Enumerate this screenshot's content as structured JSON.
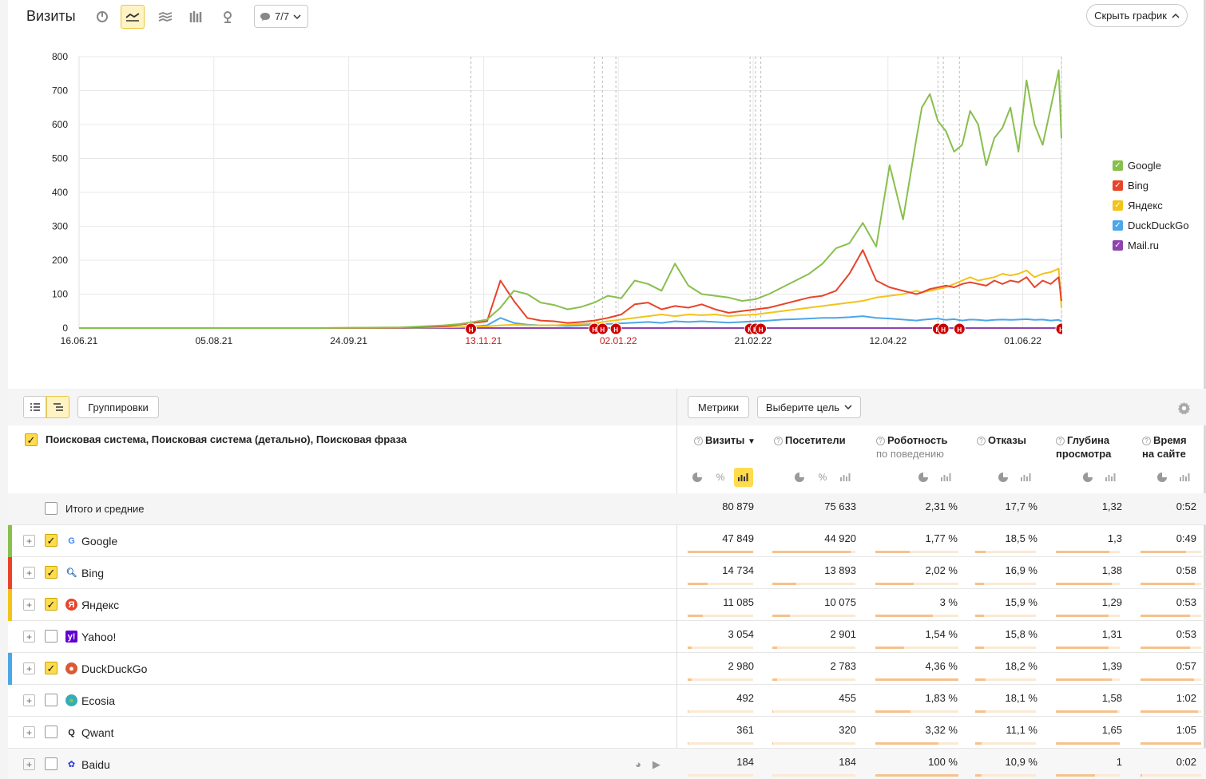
{
  "header": {
    "title": "Визиты",
    "notes_label": "7/7",
    "hide_chart_label": "Скрыть график"
  },
  "chart_data": {
    "type": "line",
    "x_ticks": [
      "16.06.21",
      "05.08.21",
      "24.09.21",
      "13.11.21",
      "02.01.22",
      "21.02.22",
      "12.04.22",
      "01.06.22"
    ],
    "x_ticks_highlighted": [
      "13.11.21",
      "02.01.22"
    ],
    "y_ticks": [
      "0",
      "100",
      "200",
      "300",
      "400",
      "500",
      "600",
      "700",
      "800"
    ],
    "ylim": [
      0,
      800
    ],
    "x": [
      "2021-06-16",
      "2021-07-16",
      "2021-08-15",
      "2021-09-14",
      "2021-10-14",
      "2021-10-30",
      "2021-11-05",
      "2021-11-10",
      "2021-11-15",
      "2021-11-20",
      "2021-11-25",
      "2021-11-30",
      "2021-12-05",
      "2021-12-10",
      "2021-12-15",
      "2021-12-20",
      "2021-12-25",
      "2021-12-30",
      "2022-01-04",
      "2022-01-09",
      "2022-01-14",
      "2022-01-19",
      "2022-01-24",
      "2022-01-29",
      "2022-02-03",
      "2022-02-08",
      "2022-02-13",
      "2022-02-18",
      "2022-02-23",
      "2022-02-28",
      "2022-03-05",
      "2022-03-10",
      "2022-03-15",
      "2022-03-20",
      "2022-03-25",
      "2022-03-30",
      "2022-04-04",
      "2022-04-09",
      "2022-04-14",
      "2022-04-19",
      "2022-04-24",
      "2022-04-26",
      "2022-04-29",
      "2022-05-02",
      "2022-05-05",
      "2022-05-08",
      "2022-05-11",
      "2022-05-14",
      "2022-05-17",
      "2022-05-20",
      "2022-05-23",
      "2022-05-26",
      "2022-05-29",
      "2022-06-01",
      "2022-06-04",
      "2022-06-07",
      "2022-06-10",
      "2022-06-13",
      "2022-06-16",
      "2022-06-17"
    ],
    "series": [
      {
        "name": "Google",
        "color": "#88bf4d",
        "values": [
          0,
          0,
          0,
          0,
          2,
          8,
          12,
          18,
          25,
          60,
          110,
          100,
          75,
          68,
          55,
          62,
          75,
          95,
          88,
          140,
          130,
          110,
          190,
          125,
          100,
          95,
          90,
          80,
          85,
          100,
          120,
          140,
          160,
          190,
          235,
          250,
          310,
          240,
          480,
          320,
          560,
          650,
          690,
          610,
          580,
          520,
          540,
          640,
          600,
          480,
          560,
          590,
          650,
          520,
          730,
          600,
          540,
          650,
          760,
          560
        ]
      },
      {
        "name": "Bing",
        "color": "#e8442a",
        "values": [
          0,
          0,
          0,
          0,
          1,
          5,
          10,
          15,
          20,
          140,
          80,
          30,
          22,
          20,
          15,
          18,
          22,
          30,
          40,
          70,
          75,
          55,
          65,
          60,
          70,
          55,
          45,
          50,
          55,
          60,
          70,
          80,
          90,
          95,
          110,
          160,
          230,
          140,
          120,
          110,
          100,
          105,
          115,
          120,
          125,
          120,
          130,
          135,
          130,
          125,
          140,
          130,
          140,
          135,
          150,
          120,
          140,
          130,
          150,
          80
        ]
      },
      {
        "name": "Яндекс",
        "color": "#f2c31a",
        "values": [
          0,
          0,
          0,
          0,
          1,
          2,
          3,
          4,
          5,
          8,
          10,
          8,
          8,
          8,
          10,
          12,
          14,
          20,
          25,
          30,
          35,
          40,
          35,
          40,
          38,
          40,
          35,
          38,
          40,
          45,
          50,
          55,
          60,
          65,
          70,
          75,
          80,
          90,
          95,
          100,
          110,
          105,
          110,
          115,
          120,
          130,
          140,
          150,
          140,
          145,
          150,
          160,
          155,
          160,
          170,
          150,
          160,
          165,
          175,
          60
        ]
      },
      {
        "name": "DuckDuckGo",
        "color": "#4da6e8",
        "values": [
          0,
          0,
          0,
          0,
          0,
          2,
          3,
          5,
          8,
          30,
          15,
          10,
          8,
          8,
          6,
          8,
          10,
          12,
          14,
          16,
          18,
          15,
          20,
          18,
          20,
          18,
          16,
          18,
          20,
          22,
          25,
          26,
          28,
          30,
          30,
          32,
          35,
          30,
          28,
          25,
          22,
          24,
          26,
          28,
          24,
          26,
          22,
          25,
          24,
          22,
          24,
          25,
          24,
          25,
          26,
          24,
          25,
          22,
          24,
          20
        ]
      },
      {
        "name": "Mail.ru",
        "color": "#8e44ad",
        "values": [
          0,
          0,
          0,
          0,
          0,
          0,
          0,
          0,
          0,
          0,
          0,
          0,
          0,
          0,
          0,
          0,
          0,
          0,
          0,
          0,
          0,
          0,
          0,
          0,
          0,
          0,
          0,
          0,
          0,
          0,
          0,
          0,
          0,
          0,
          0,
          0,
          0,
          0,
          0,
          0,
          0,
          0,
          0,
          0,
          0,
          0,
          0,
          0,
          0,
          0,
          0,
          0,
          0,
          0,
          0,
          0,
          0,
          0,
          0,
          0
        ]
      }
    ],
    "annotation_marker_label": "H",
    "annotation_dates": [
      "2021-11-09",
      "2021-12-25",
      "2021-12-28",
      "2022-01-02",
      "2022-02-21",
      "2022-02-23",
      "2022-02-25",
      "2022-05-02",
      "2022-05-04",
      "2022-05-10",
      "2022-06-17"
    ],
    "grid": true,
    "legend_position": "right"
  },
  "legend": {
    "items": [
      {
        "label": "Google",
        "color": "#88bf4d"
      },
      {
        "label": "Bing",
        "color": "#e8442a"
      },
      {
        "label": "Яндекс",
        "color": "#f2c31a"
      },
      {
        "label": "DuckDuckGo",
        "color": "#4da6e8"
      },
      {
        "label": "Mail.ru",
        "color": "#8e44ad"
      }
    ]
  },
  "toolbar": {
    "groupings_label": "Группировки",
    "metrics_label": "Метрики",
    "goal_label": "Выберите цель"
  },
  "table": {
    "dimension_header": "Поисковая система, Поисковая система (детально), Поисковая фраза",
    "columns": [
      {
        "label": "Визиты",
        "sort": "▼"
      },
      {
        "label": "Посетители"
      },
      {
        "label": "Роботность",
        "sub": "по поведению"
      },
      {
        "label": "Отказы"
      },
      {
        "label": "Глубина",
        "label2": "просмотра"
      },
      {
        "label": "Время",
        "label2": "на сайте"
      }
    ],
    "total": {
      "name": "Итого и средние",
      "values": [
        "80 879",
        "75 633",
        "2,31 %",
        "17,7 %",
        "1,32",
        "0:52"
      ]
    },
    "rows": [
      {
        "name": "Google",
        "values": [
          "47 849",
          "44 920",
          "1,77 %",
          "18,5 %",
          "1,3",
          "0:49"
        ],
        "checked": true,
        "stripe": "#88bf4d",
        "icon": "google-icon",
        "bars": [
          1.0,
          0.94,
          0.41,
          0.17,
          0.84,
          0.75
        ]
      },
      {
        "name": "Bing",
        "values": [
          "14 734",
          "13 893",
          "2,02 %",
          "16,9 %",
          "1,38",
          "0:58"
        ],
        "checked": true,
        "stripe": "#e8442a",
        "icon": "bing-search-icon",
        "bars": [
          0.31,
          0.29,
          0.46,
          0.15,
          0.87,
          0.89
        ]
      },
      {
        "name": "Яндекс",
        "values": [
          "11 085",
          "10 075",
          "3 %",
          "15,9 %",
          "1,29",
          "0:53"
        ],
        "checked": true,
        "stripe": "#f2c31a",
        "icon": "yandex-icon",
        "bars": [
          0.23,
          0.21,
          0.69,
          0.15,
          0.82,
          0.82
        ]
      },
      {
        "name": "Yahoo!",
        "values": [
          "3 054",
          "2 901",
          "1,54 %",
          "15,8 %",
          "1,31",
          "0:53"
        ],
        "checked": false,
        "stripe": "",
        "icon": "yahoo-icon",
        "bars": [
          0.06,
          0.06,
          0.35,
          0.14,
          0.83,
          0.82
        ]
      },
      {
        "name": "DuckDuckGo",
        "values": [
          "2 980",
          "2 783",
          "4,36 %",
          "18,2 %",
          "1,39",
          "0:57"
        ],
        "checked": true,
        "stripe": "#4da6e8",
        "icon": "duckduckgo-icon",
        "bars": [
          0.06,
          0.06,
          1.0,
          0.17,
          0.88,
          0.88
        ]
      },
      {
        "name": "Ecosia",
        "values": [
          "492",
          "455",
          "1,83 %",
          "18,1 %",
          "1,58",
          "1:02"
        ],
        "checked": false,
        "stripe": "",
        "icon": "ecosia-icon",
        "bars": [
          0.01,
          0.01,
          0.42,
          0.17,
          0.96,
          0.95
        ]
      },
      {
        "name": "Qwant",
        "values": [
          "361",
          "320",
          "3,32 %",
          "11,1 %",
          "1,65",
          "1:05"
        ],
        "checked": false,
        "stripe": "",
        "icon": "qwant-icon",
        "bars": [
          0.01,
          0.01,
          0.76,
          0.1,
          1.0,
          1.0
        ]
      },
      {
        "name": "Baidu",
        "values": [
          "184",
          "184",
          "100 %",
          "10,9 %",
          "1",
          "0:02"
        ],
        "checked": false,
        "stripe": "",
        "icon": "baidu-icon",
        "bars": [
          0.0,
          0.0,
          1.0,
          0.1,
          0.61,
          0.03
        ]
      }
    ]
  }
}
